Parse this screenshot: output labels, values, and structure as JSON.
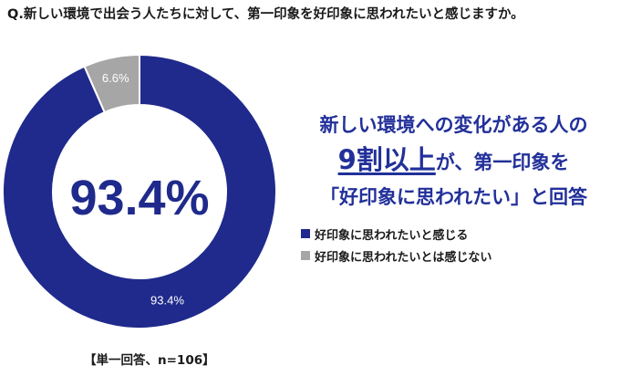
{
  "question": "Q.新しい環境で出会う人たちに対して、第一印象を好印象に思われたいと感じますか。",
  "headline": {
    "line1": "新しい環境への変化がある人の",
    "line2_emph": "9割以上",
    "line2_rest": "が、第一印象を",
    "line3": "「好印象に思われたい」と回答"
  },
  "footnote": "【単一回答、n=106】",
  "colors": {
    "primary": "#1f2a8c",
    "secondary": "#a6a6a6",
    "accent_text": "#22309a"
  },
  "chart_data": {
    "type": "donut",
    "title": "",
    "center_label": "93.4%",
    "series": [
      {
        "name": "好印象に思われたいと感じる",
        "value": 93.4,
        "label": "93.4%",
        "color": "#1f2a8c"
      },
      {
        "name": "好印象に思われたいとは感じない",
        "value": 6.6,
        "label": "6.6%",
        "color": "#a6a6a6"
      }
    ],
    "legend_position": "right"
  }
}
